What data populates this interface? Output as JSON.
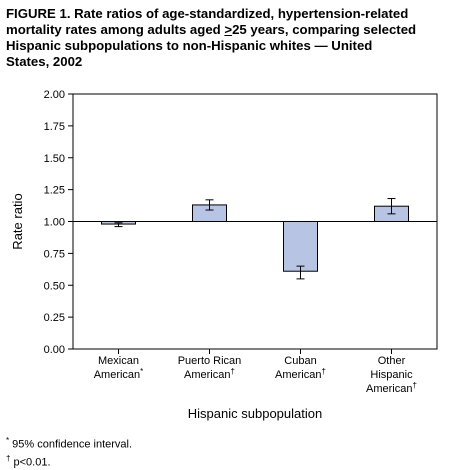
{
  "figure": {
    "title_line1": "FIGURE 1. Rate ratios of age-standardized, hypertension-related",
    "title_line2_a": "mortality rates among adults aged ",
    "title_line2_ge": ">",
    "title_line2_b": "25 years, comparing selected",
    "title_line3": "Hispanic subpopulations to non-Hispanic whites — United",
    "title_line4": "States, 2002"
  },
  "chart_data": {
    "type": "bar",
    "title": "Rate ratios of age-standardized, hypertension-related mortality rates among adults aged ≥25 years, comparing selected Hispanic subpopulations to non-Hispanic whites — United States, 2002",
    "categories": [
      {
        "line1": "Mexican",
        "line2": "American",
        "line3": "",
        "mark": "*"
      },
      {
        "line1": "Puerto Rican",
        "line2": "American",
        "line3": "",
        "mark": "†"
      },
      {
        "line1": "Cuban",
        "line2": "American",
        "line3": "",
        "mark": "†"
      },
      {
        "line1": "Other",
        "line2": "Hispanic",
        "line3": "American",
        "mark": "†"
      }
    ],
    "values": [
      0.98,
      1.13,
      0.61,
      1.12
    ],
    "ci_low": [
      0.96,
      1.09,
      0.55,
      1.06
    ],
    "ci_high": [
      0.99,
      1.17,
      0.65,
      1.18
    ],
    "baseline": 1.0,
    "ylim": [
      0.0,
      2.0
    ],
    "yticks": [
      "0.00",
      "0.25",
      "0.50",
      "0.75",
      "1.00",
      "1.25",
      "1.50",
      "1.75",
      "2.00"
    ],
    "ylabel": "Rate ratio",
    "xlabel": "Hispanic subpopulation",
    "bar_color": "#b7c4e4",
    "grid": false
  },
  "footnotes": {
    "star_mark": "*",
    "star_text": " 95% confidence interval.",
    "dagger_mark": "†",
    "dagger_text": " p<0.01."
  }
}
